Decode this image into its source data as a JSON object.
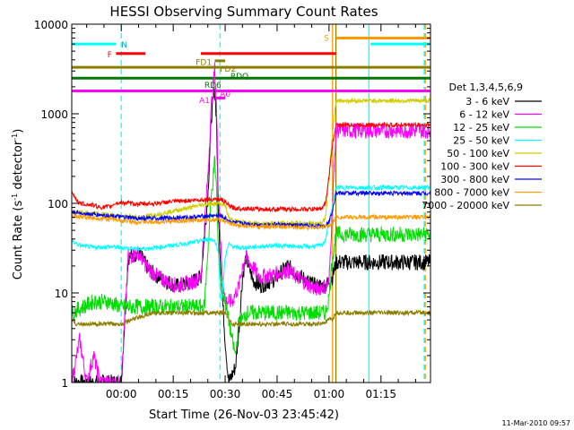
{
  "chart_data": {
    "type": "line",
    "title": "HESSI Observing Summary Count Rates",
    "xlabel": "Start Time (26-Nov-03 23:45:42)",
    "ylabel_main": "Count Rate (s",
    "ylabel_sup1": "-1",
    "ylabel_mid": " detector",
    "ylabel_sup2": "-1",
    "ylabel_end": ")",
    "footer": "11-Mar-2010 09:57",
    "yscale": "log",
    "ylim": [
      1,
      10000
    ],
    "xlim_minutes": [
      -14.3,
      89.3
    ],
    "x_ticks": [
      {
        "m": 0,
        "label": "00:00"
      },
      {
        "m": 15,
        "label": "00:15"
      },
      {
        "m": 30,
        "label": "00:30"
      },
      {
        "m": 45,
        "label": "00:45"
      },
      {
        "m": 60,
        "label": "01:00"
      },
      {
        "m": 75,
        "label": "01:15"
      }
    ],
    "y_ticks": [
      {
        "v": 1,
        "label": "1"
      },
      {
        "v": 10,
        "label": "10"
      },
      {
        "v": 100,
        "label": "100"
      },
      {
        "v": 1000,
        "label": "1000"
      },
      {
        "v": 10000,
        "label": "10000"
      }
    ],
    "legend": {
      "title": "Det 1,3,4,5,6,9",
      "placement": "right"
    },
    "series": [
      {
        "name": "3 - 6 keV",
        "color": "#000000",
        "points": [
          [
            -14.3,
            1
          ],
          [
            0,
            1
          ],
          [
            2,
            25
          ],
          [
            5,
            28
          ],
          [
            8,
            18
          ],
          [
            12,
            14
          ],
          [
            16,
            12
          ],
          [
            20,
            13
          ],
          [
            23,
            15
          ],
          [
            25,
            120
          ],
          [
            26,
            900
          ],
          [
            27,
            1800
          ],
          [
            27.5,
            900
          ],
          [
            28,
            80
          ],
          [
            29,
            12
          ],
          [
            30,
            3
          ],
          [
            31,
            1
          ],
          [
            33,
            1.5
          ],
          [
            34,
            4
          ],
          [
            35,
            15
          ],
          [
            36,
            25
          ],
          [
            38,
            14
          ],
          [
            40,
            12
          ],
          [
            44,
            14
          ],
          [
            48,
            20
          ],
          [
            52,
            15
          ],
          [
            56,
            12
          ],
          [
            59,
            12
          ],
          [
            61,
            15
          ],
          [
            62,
            22
          ]
        ]
      },
      {
        "name": "6 - 12 keV",
        "color": "#ff00ff",
        "points": [
          [
            -14.3,
            1
          ],
          [
            -12,
            3
          ],
          [
            -10,
            1
          ],
          [
            -8,
            2
          ],
          [
            -6,
            1
          ],
          [
            -4,
            1
          ],
          [
            -2,
            1
          ],
          [
            0,
            1
          ],
          [
            2,
            25
          ],
          [
            5,
            28
          ],
          [
            8,
            18
          ],
          [
            12,
            14
          ],
          [
            16,
            12
          ],
          [
            20,
            13
          ],
          [
            23,
            15
          ],
          [
            25,
            200
          ],
          [
            26,
            1200
          ],
          [
            27,
            3200
          ],
          [
            27.5,
            1200
          ],
          [
            28,
            150
          ],
          [
            29,
            20
          ],
          [
            30,
            8
          ],
          [
            32,
            8
          ],
          [
            34,
            12
          ],
          [
            35,
            20
          ],
          [
            36,
            25
          ],
          [
            40,
            15
          ],
          [
            44,
            16
          ],
          [
            48,
            18
          ],
          [
            52,
            14
          ],
          [
            56,
            11
          ],
          [
            59,
            12
          ],
          [
            60,
            13
          ],
          [
            61,
            100
          ],
          [
            62,
            650
          ]
        ]
      },
      {
        "name": "12 - 25 keV",
        "color": "#00dd00",
        "points": [
          [
            -14.3,
            6
          ],
          [
            -11,
            7
          ],
          [
            -8,
            8
          ],
          [
            -4,
            8
          ],
          [
            0,
            7
          ],
          [
            5,
            7
          ],
          [
            10,
            7
          ],
          [
            15,
            7
          ],
          [
            20,
            7
          ],
          [
            24,
            7
          ],
          [
            25,
            30
          ],
          [
            26,
            120
          ],
          [
            27,
            300
          ],
          [
            27.5,
            150
          ],
          [
            28,
            30
          ],
          [
            29,
            12
          ],
          [
            30,
            8
          ],
          [
            31,
            5
          ],
          [
            32,
            3
          ],
          [
            33,
            2
          ],
          [
            34,
            5
          ],
          [
            35,
            5
          ],
          [
            36,
            6
          ],
          [
            40,
            6
          ],
          [
            45,
            6
          ],
          [
            50,
            6
          ],
          [
            55,
            6
          ],
          [
            58,
            6
          ],
          [
            59,
            6
          ],
          [
            60,
            9
          ],
          [
            61,
            25
          ],
          [
            62,
            45
          ]
        ]
      },
      {
        "name": "25 - 50 keV",
        "color": "#00ffff",
        "points": [
          [
            -14.3,
            38
          ],
          [
            -12,
            34
          ],
          [
            -8,
            32
          ],
          [
            -4,
            33
          ],
          [
            0,
            32
          ],
          [
            5,
            31
          ],
          [
            10,
            32
          ],
          [
            15,
            34
          ],
          [
            20,
            36
          ],
          [
            24,
            39
          ],
          [
            26,
            40
          ],
          [
            27,
            38
          ],
          [
            28,
            30
          ],
          [
            28.5,
            12
          ],
          [
            29,
            8
          ],
          [
            30,
            25
          ],
          [
            31,
            35
          ],
          [
            33,
            32
          ],
          [
            35,
            32
          ],
          [
            40,
            33
          ],
          [
            45,
            34
          ],
          [
            50,
            33
          ],
          [
            55,
            33
          ],
          [
            58,
            34
          ],
          [
            59,
            40
          ],
          [
            60,
            60
          ],
          [
            61,
            95
          ],
          [
            62,
            150
          ]
        ]
      },
      {
        "name": "50 - 100 keV",
        "color": "#cccc00",
        "points": [
          [
            -14.3,
            80
          ],
          [
            -8,
            77
          ],
          [
            -4,
            75
          ],
          [
            0,
            72
          ],
          [
            5,
            70
          ],
          [
            10,
            75
          ],
          [
            15,
            82
          ],
          [
            20,
            90
          ],
          [
            24,
            98
          ],
          [
            28,
            100
          ],
          [
            30,
            96
          ],
          [
            31,
            70
          ],
          [
            32,
            65
          ],
          [
            34,
            62
          ],
          [
            38,
            60
          ],
          [
            42,
            60
          ],
          [
            46,
            60
          ],
          [
            50,
            60
          ],
          [
            55,
            60
          ],
          [
            58,
            60
          ],
          [
            59,
            70
          ],
          [
            60,
            200
          ],
          [
            61,
            600
          ],
          [
            62,
            1400
          ]
        ]
      },
      {
        "name": "100 - 300 keV",
        "color": "#ff0000",
        "points": [
          [
            -14.3,
            130
          ],
          [
            -12,
            100
          ],
          [
            -8,
            95
          ],
          [
            -6,
            90
          ],
          [
            -3,
            92
          ],
          [
            -2,
            100
          ],
          [
            0,
            102
          ],
          [
            5,
            98
          ],
          [
            10,
            100
          ],
          [
            15,
            105
          ],
          [
            20,
            108
          ],
          [
            24,
            110
          ],
          [
            27,
            112
          ],
          [
            29,
            110
          ],
          [
            31,
            95
          ],
          [
            32,
            90
          ],
          [
            33,
            88
          ],
          [
            36,
            88
          ],
          [
            40,
            86
          ],
          [
            45,
            86
          ],
          [
            50,
            86
          ],
          [
            55,
            86
          ],
          [
            58,
            88
          ],
          [
            59,
            100
          ],
          [
            60,
            200
          ],
          [
            61,
            450
          ],
          [
            62,
            750
          ]
        ]
      },
      {
        "name": "300 - 800 keV",
        "color": "#0000ff",
        "points": [
          [
            -14.3,
            80
          ],
          [
            -10,
            76
          ],
          [
            -6,
            74
          ],
          [
            -2,
            72
          ],
          [
            0,
            70
          ],
          [
            5,
            68
          ],
          [
            10,
            68
          ],
          [
            15,
            69
          ],
          [
            20,
            70
          ],
          [
            24,
            72
          ],
          [
            27,
            73
          ],
          [
            29,
            72
          ],
          [
            31,
            64
          ],
          [
            32,
            62
          ],
          [
            34,
            60
          ],
          [
            40,
            58
          ],
          [
            45,
            58
          ],
          [
            50,
            57
          ],
          [
            55,
            56
          ],
          [
            58,
            56
          ],
          [
            59,
            58
          ],
          [
            60,
            62
          ],
          [
            61,
            85
          ],
          [
            62,
            130
          ]
        ]
      },
      {
        "name": "800 - 7000 keV",
        "color": "#ff9900",
        "points": [
          [
            -14.3,
            72
          ],
          [
            -10,
            70
          ],
          [
            -6,
            68
          ],
          [
            -2,
            66
          ],
          [
            0,
            64
          ],
          [
            5,
            62
          ],
          [
            10,
            62
          ],
          [
            15,
            63
          ],
          [
            20,
            64
          ],
          [
            24,
            65
          ],
          [
            27,
            66
          ],
          [
            29,
            66
          ],
          [
            31,
            60
          ],
          [
            32,
            58
          ],
          [
            34,
            56
          ],
          [
            40,
            55
          ],
          [
            45,
            55
          ],
          [
            50,
            54
          ],
          [
            55,
            54
          ],
          [
            58,
            54
          ],
          [
            59,
            55
          ],
          [
            60,
            56
          ],
          [
            61,
            60
          ],
          [
            62,
            70
          ]
        ]
      },
      {
        "name": "7000 - 20000 keV",
        "color": "#8b7d00",
        "points": [
          [
            -14.3,
            5
          ],
          [
            -13,
            4.5
          ],
          [
            -11,
            4.5
          ],
          [
            -8,
            4.5
          ],
          [
            -5,
            4.5
          ],
          [
            -2,
            4.5
          ],
          [
            0,
            4.5
          ],
          [
            3,
            5
          ],
          [
            6,
            5.5
          ],
          [
            9,
            6
          ],
          [
            12,
            6
          ],
          [
            15,
            6
          ],
          [
            18,
            6
          ],
          [
            21,
            6
          ],
          [
            24,
            6
          ],
          [
            27,
            6
          ],
          [
            30,
            6
          ],
          [
            32,
            4.5
          ],
          [
            34,
            4.5
          ],
          [
            38,
            4.5
          ],
          [
            42,
            4.5
          ],
          [
            46,
            4.5
          ],
          [
            50,
            4.5
          ],
          [
            54,
            4.5
          ],
          [
            58,
            4.5
          ],
          [
            60,
            5
          ],
          [
            61,
            5
          ],
          [
            62,
            6
          ]
        ]
      }
    ],
    "flag_bars": [
      {
        "label": "N",
        "color": "#00ffff",
        "ranges": [
          [
            -14.3,
            -1.5
          ],
          [
            72,
            89.3
          ]
        ],
        "y": 6000
      },
      {
        "label": "F",
        "color": "#ff0000",
        "ranges": [
          [
            -1.5,
            7
          ],
          [
            23,
            62
          ]
        ],
        "y": 4700
      },
      {
        "label": "S",
        "color": "#ff9900",
        "ranges": [
          [
            62,
            89.3
          ]
        ],
        "y": 7000
      },
      {
        "label": "FD1",
        "color": "#8b7d00",
        "ranges": [
          [
            -14.3,
            89.3
          ]
        ],
        "y": 3300
      },
      {
        "label": "FD2",
        "color": "#8b7d00",
        "ranges": [
          [
            27,
            30
          ]
        ],
        "y": 3900
      },
      {
        "label": "RD6",
        "color": "#007700",
        "ranges": [
          [
            -14.3,
            89.3
          ]
        ],
        "y": 2500
      },
      {
        "label": "A1",
        "color": "#ff00ff",
        "ranges": [
          [
            -14.3,
            89.3
          ]
        ],
        "y": 1800
      },
      {
        "label": "A0",
        "color": "#ff00ff",
        "ranges": [
          [
            27,
            30
          ]
        ],
        "y": 1500
      }
    ],
    "flag_labels": [
      {
        "label": "N",
        "m": 0,
        "v": 6000,
        "color": "#00aaaa"
      },
      {
        "label": "F",
        "m": -4,
        "v": 4700,
        "color": "#ff0000"
      },
      {
        "label": "S",
        "m": 58.5,
        "v": 7200,
        "color": "#ff9900"
      },
      {
        "label": "FD1",
        "m": 21.5,
        "v": 3850,
        "color": "#8b7d00"
      },
      {
        "label": "FD2",
        "m": 28.5,
        "v": 3250,
        "color": "#8b7d00"
      },
      {
        "label": "RDQ",
        "m": 31.5,
        "v": 2700,
        "color": "#007700"
      },
      {
        "label": "RD6",
        "m": 24,
        "v": 2150,
        "color": "#007700"
      },
      {
        "label": "A1",
        "m": 22.5,
        "v": 1450,
        "color": "#ff00ff"
      },
      {
        "label": "A0",
        "m": 28.5,
        "v": 1700,
        "color": "#ff00ff"
      }
    ],
    "vlines": [
      {
        "m": 0,
        "color": "#00ffff",
        "dashed": true
      },
      {
        "m": 28.5,
        "color": "#00ffff",
        "dashed": true
      },
      {
        "m": 61,
        "color": "#ff9900",
        "dashed": false
      },
      {
        "m": 62,
        "color": "#8b7d00",
        "dashed": false
      },
      {
        "m": 71.5,
        "color": "#00ffff",
        "dashed": false
      },
      {
        "m": 87.5,
        "color": "#00ffff",
        "dashed": true
      },
      {
        "m": 87.8,
        "color": "#ff9900",
        "dashed": true
      }
    ]
  }
}
